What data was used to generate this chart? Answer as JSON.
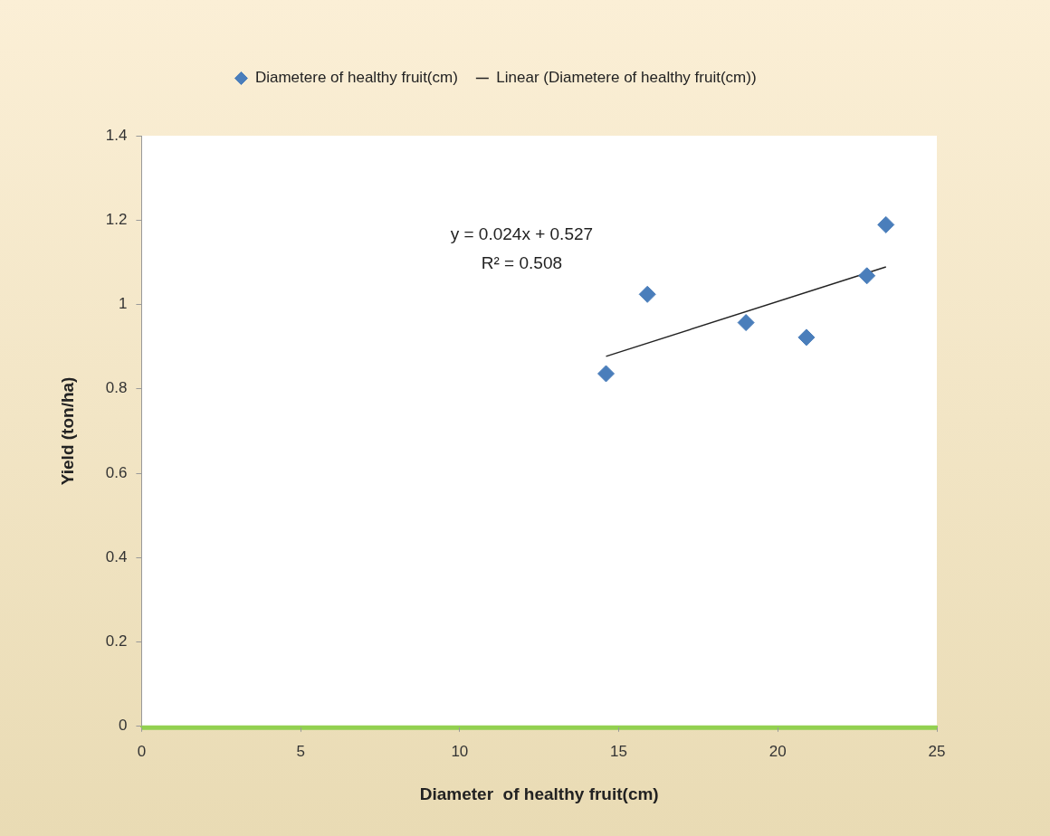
{
  "chart_data": {
    "type": "scatter",
    "xlabel": "Diameter  of healthy fruit(cm)",
    "ylabel": "Yield (ton/ha)",
    "xlim": [
      0,
      25
    ],
    "xticks": [
      0,
      5,
      10,
      15,
      20,
      25
    ],
    "ylim": [
      0,
      1.4
    ],
    "yticks": [
      0,
      0.2,
      0.4,
      0.6,
      0.8,
      1,
      1.2,
      1.4
    ],
    "grid": false,
    "legend": "top",
    "series": [
      {
        "name": "Diametere of healthy fruit(cm)",
        "marker": "diamond",
        "color": "#4a7ebb",
        "x": [
          14.6,
          15.9,
          19.0,
          20.9,
          22.8,
          23.4
        ],
        "values": [
          0.836,
          1.024,
          0.957,
          0.922,
          1.068,
          1.189
        ]
      },
      {
        "name": "Linear (Diametere of healthy fruit(cm))",
        "type": "line",
        "marker": "none",
        "color": "#222222",
        "x": [
          14.6,
          23.4
        ],
        "values": [
          0.877,
          1.089
        ]
      }
    ],
    "annotations": [
      "y = 0.024x + 0.527",
      "R² = 0.508"
    ]
  }
}
